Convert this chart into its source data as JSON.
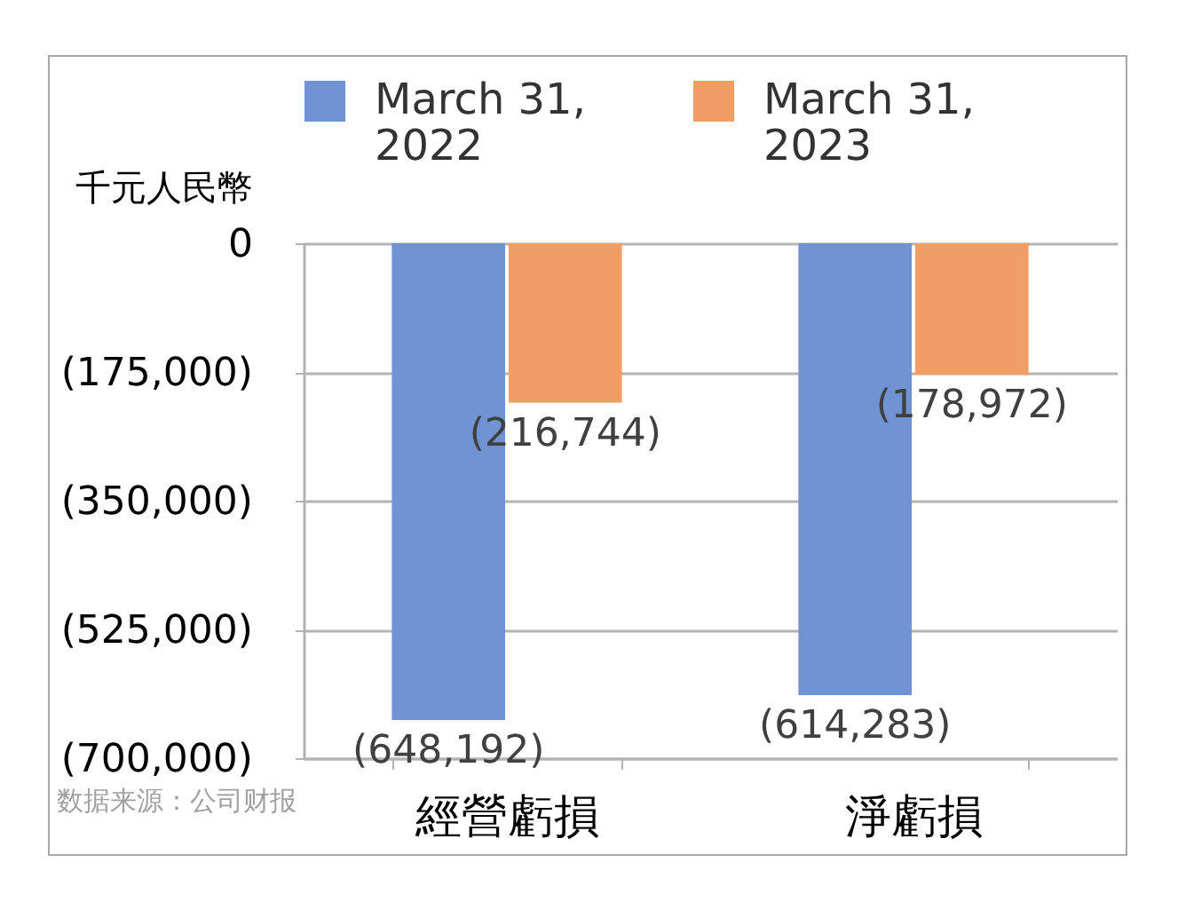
{
  "chart_data": {
    "type": "bar",
    "ylabel": "千元人民幣",
    "categories": [
      "經營虧損",
      "淨虧損"
    ],
    "series": [
      {
        "name": "March 31, 2022",
        "color": "#7093d2",
        "values": [
          -648192,
          -614283
        ],
        "value_labels": [
          "(648,192)",
          "(614,283)"
        ]
      },
      {
        "name": "March 31, 2023",
        "color": "#f19e65",
        "values": [
          -216744,
          -178972
        ],
        "value_labels": [
          "(216,744)",
          "(178,972)"
        ]
      }
    ],
    "ylim": [
      -700000,
      0
    ],
    "yticks": [
      0,
      {
        "value": -175000,
        "label": "(175,000)"
      },
      {
        "value": -350000,
        "label": "(350,000)"
      },
      {
        "value": -525000,
        "label": "(525,000)"
      },
      {
        "value": -700000,
        "label": "(700,000)"
      }
    ],
    "grid": "y",
    "legend": "top",
    "annotations": [
      "数据来源：公司财报"
    ]
  }
}
